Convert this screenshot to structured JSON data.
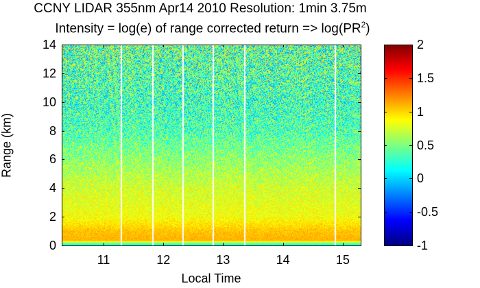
{
  "chart_data": {
    "type": "heatmap",
    "title": "CCNY LIDAR 355nm Apr14 2010 Resolution: 1min 3.75m",
    "subtitle_prefix": "Intensity = log(e) of range corrected return => log(PR",
    "subtitle_sup": "2",
    "subtitle_suffix": ")",
    "xlabel": "Local Time",
    "ylabel": "Range (km)",
    "xlim": [
      10.3,
      15.3
    ],
    "ylim": [
      0,
      14
    ],
    "xticks": [
      11,
      12,
      13,
      14,
      15
    ],
    "yticks": [
      0,
      2,
      4,
      6,
      8,
      10,
      12,
      14
    ],
    "colorbar": {
      "min": -1,
      "max": 2,
      "ticks": [
        "-1",
        "-0.5",
        "0",
        "0.5",
        "1",
        "1.5",
        "2"
      ],
      "tick_values": [
        -1,
        -0.5,
        0,
        0.5,
        1,
        1.5,
        2
      ]
    },
    "gap_times": [
      11.3,
      11.82,
      12.33,
      12.84,
      13.36,
      14.88
    ],
    "intensity_profile": [
      {
        "range_km": 0.1,
        "value": 0.3
      },
      {
        "range_km": 0.35,
        "value": 1.1
      },
      {
        "range_km": 1.0,
        "value": 1.05
      },
      {
        "range_km": 2.0,
        "value": 0.85
      },
      {
        "range_km": 4.0,
        "value": 0.75
      },
      {
        "range_km": 6.0,
        "value": 0.55
      },
      {
        "range_km": 8.0,
        "value": 0.35
      },
      {
        "range_km": 10.0,
        "value": 0.3
      },
      {
        "range_km": 12.0,
        "value": 0.35
      },
      {
        "range_km": 14.0,
        "value": 0.4
      }
    ]
  }
}
